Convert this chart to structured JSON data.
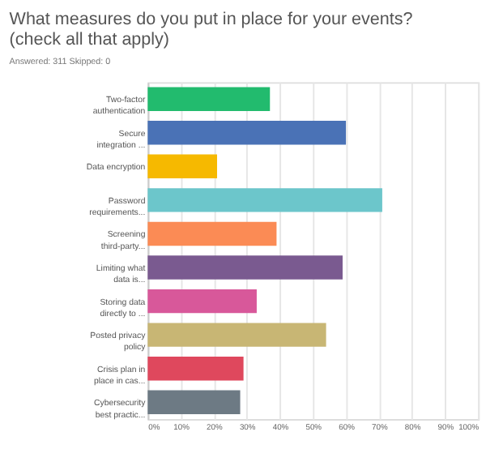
{
  "chart_data": {
    "type": "bar",
    "orientation": "horizontal",
    "title": "What measures do you put in place for your events? (check all that apply)",
    "subtitle": "Answered: 311    Skipped: 0",
    "categories": [
      "Two-factor authentication",
      "Secure integration ...",
      "Data encryption",
      "Password requirements...",
      "Screening third-party...",
      "Limiting what data is...",
      "Storing data directly to ...",
      "Posted privacy policy",
      "Crisis plan in place in cas...",
      "Cybersecurity best practic..."
    ],
    "values": [
      37,
      60,
      21,
      71,
      39,
      59,
      33,
      54,
      29,
      28
    ],
    "colors": [
      "#22bb6e",
      "#4a72b6",
      "#f6b900",
      "#6cc6cb",
      "#fb8b55",
      "#7a5a90",
      "#d8589a",
      "#c8b674",
      "#df485d",
      "#6d7a84"
    ],
    "xlim": [
      0,
      100
    ],
    "xticks": [
      {
        "value": 0,
        "label": "0%"
      },
      {
        "value": 10,
        "label": "10%"
      },
      {
        "value": 20,
        "label": "20%"
      },
      {
        "value": 30,
        "label": "30%"
      },
      {
        "value": 40,
        "label": "40%"
      },
      {
        "value": 50,
        "label": "50%"
      },
      {
        "value": 60,
        "label": "60%"
      },
      {
        "value": 70,
        "label": "70%"
      },
      {
        "value": 80,
        "label": "80%"
      },
      {
        "value": 90,
        "label": "90%"
      },
      {
        "value": 100,
        "label": "100%"
      }
    ],
    "grid": "x",
    "legend": false
  }
}
